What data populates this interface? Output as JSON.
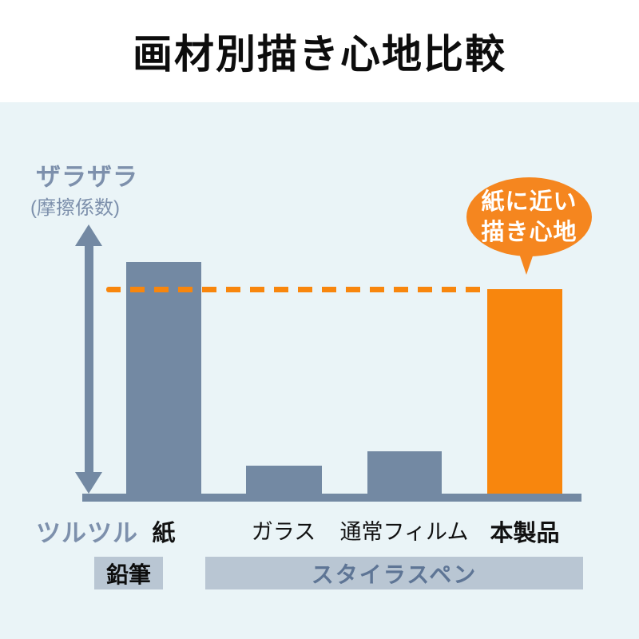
{
  "header": {
    "title": "画材別描き心地比較"
  },
  "colors": {
    "background": "#eaf4f7",
    "header_background": "#ffffff",
    "bar_slate": "#7389a3",
    "bar_orange": "#f8860d",
    "axis_text_slate": "#7d90ac",
    "group_box_background": "#b9c6d3",
    "group_stylus_text": "#5e7595",
    "bubble_background": "#f5861f",
    "bubble_text": "#ffffff"
  },
  "chart_data": {
    "type": "bar",
    "title": "画材別描き心地比較",
    "y_axis": {
      "high_label": "ザラザラ",
      "unit_label": "(摩擦係数)",
      "low_label": "ツルツル",
      "numeric_ticks": false,
      "arrow": "double-headed vertical"
    },
    "categories": [
      "紙",
      "ガラス",
      "通常フィルム",
      "本製品"
    ],
    "values": [
      1.0,
      0.12,
      0.18,
      0.88
    ],
    "bar_colors": [
      "#7389a3",
      "#7389a3",
      "#7389a3",
      "#f8860d"
    ],
    "reference_line": {
      "level": 0.88,
      "style": "dashed",
      "color": "#f8860d",
      "spans_from_category": "紙",
      "spans_to_category": "本製品"
    },
    "annotation": {
      "line1": "紙に近い",
      "line2": "描き心地",
      "target": "本製品",
      "shape": "speech-bubble"
    },
    "group_labels": [
      {
        "label": "鉛筆",
        "span": [
          "紙"
        ]
      },
      {
        "label": "スタイラスペン",
        "span": [
          "ガラス",
          "通常フィルム",
          "本製品"
        ]
      }
    ],
    "grid": false,
    "legend_position": "none"
  }
}
